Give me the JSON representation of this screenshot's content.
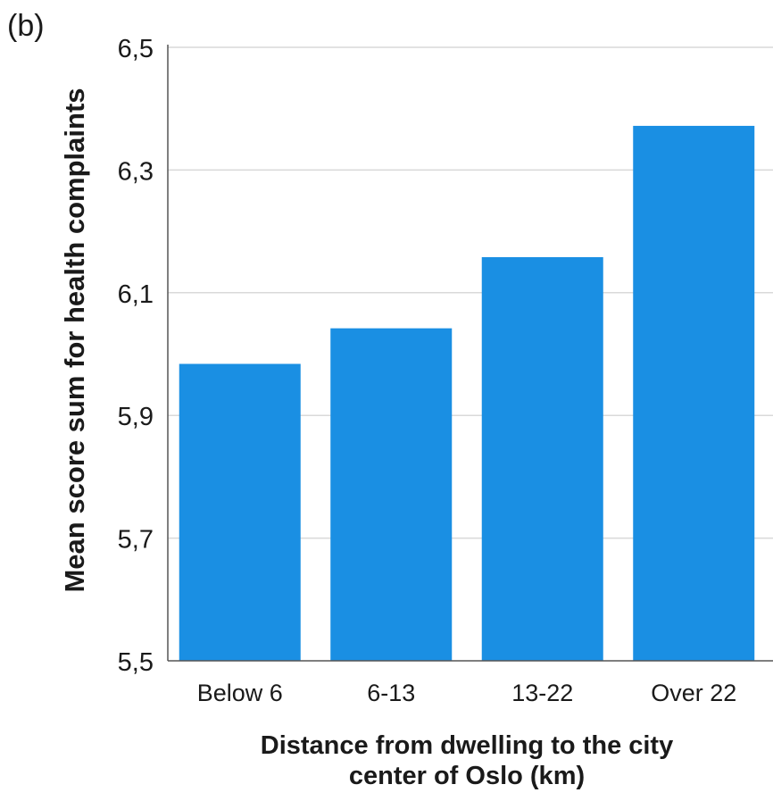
{
  "panel_label": "(b)",
  "chart_data": {
    "type": "bar",
    "title": "",
    "ylabel": "Mean score sum for health complaints",
    "xlabel_lines": [
      "Distance from dwelling to the city",
      "center of Oslo (km)"
    ],
    "categories": [
      "Below 6",
      "6-13",
      "13-22",
      "Over 22"
    ],
    "values": [
      5.984,
      6.042,
      6.158,
      6.372
    ],
    "ylim": [
      5.5,
      6.5
    ],
    "yticks": [
      5.5,
      5.7,
      5.9,
      6.1,
      6.3,
      6.5
    ],
    "ytick_labels": [
      "5,5",
      "5,7",
      "5,9",
      "6,1",
      "6,3",
      "6,5"
    ],
    "grid": true,
    "legend": "none",
    "colors": {
      "bar": "#1a8fe3",
      "grid": "#d9d9d9",
      "axis": "#555555"
    }
  }
}
